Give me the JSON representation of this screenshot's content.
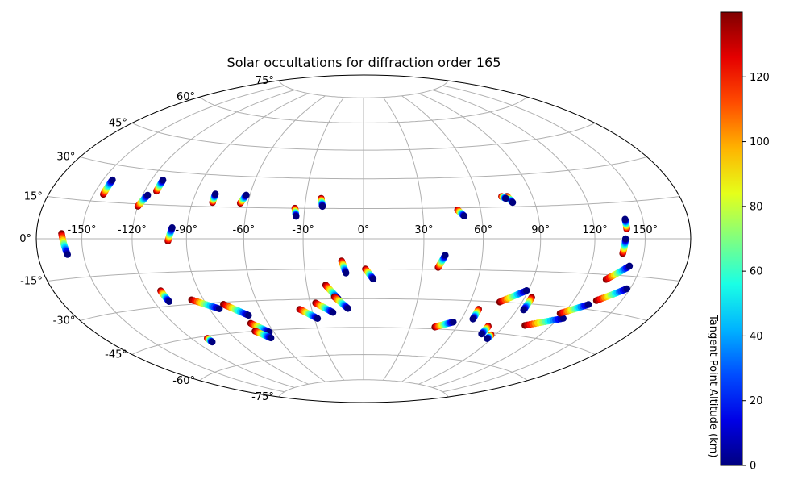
{
  "chart_data": {
    "type": "scatter",
    "projection": "aitoff-hammer",
    "title": "Solar occultations for diffraction order 165",
    "grid": true,
    "lon_ticks": [
      -150,
      -120,
      -90,
      -60,
      -30,
      0,
      30,
      60,
      90,
      120,
      150
    ],
    "lat_ticks": [
      -75,
      -60,
      -45,
      -30,
      -15,
      0,
      15,
      30,
      45,
      60,
      75
    ],
    "colorbar": {
      "label": "Tangent Point Altitude (km)",
      "ticks": [
        0,
        20,
        40,
        60,
        80,
        100,
        120
      ],
      "range": [
        0,
        140
      ],
      "colormap": "jet"
    },
    "tracks": [
      {
        "start": [
          -163,
          2
        ],
        "end": [
          -160,
          -6
        ]
      },
      {
        "start": [
          -144,
          18
        ],
        "end": [
          -144,
          24
        ]
      },
      {
        "start": [
          -120,
          14
        ],
        "end": [
          -117,
          19
        ]
      },
      {
        "start": [
          -113,
          21
        ],
        "end": [
          -113,
          26
        ]
      },
      {
        "start": [
          -100,
          -1
        ],
        "end": [
          -98,
          5
        ]
      },
      {
        "start": [
          -79,
          17
        ],
        "end": [
          -79,
          21
        ]
      },
      {
        "start": [
          -64,
          17
        ],
        "end": [
          -62,
          21
        ]
      },
      {
        "start": [
          -35,
          15
        ],
        "end": [
          -34,
          11
        ]
      },
      {
        "start": [
          -22,
          20
        ],
        "end": [
          -21,
          16
        ]
      },
      {
        "start": [
          -11,
          -11
        ],
        "end": [
          -9,
          -17
        ]
      },
      {
        "start": [
          1,
          -15
        ],
        "end": [
          5,
          -20
        ]
      },
      {
        "start": [
          38,
          -14
        ],
        "end": [
          41,
          -8
        ]
      },
      {
        "start": [
          48,
          14
        ],
        "end": [
          51,
          11
        ]
      },
      {
        "start": [
          76,
          20
        ],
        "end": [
          78,
          17
        ]
      },
      {
        "start": [
          73,
          20
        ],
        "end": [
          75,
          19
        ]
      },
      {
        "start": [
          139,
          4
        ],
        "end": [
          139,
          8
        ]
      },
      {
        "start": [
          137,
          -6
        ],
        "end": [
          138,
          0
        ]
      },
      {
        "start": [
          132,
          -17
        ],
        "end": [
          143,
          -11
        ]
      },
      {
        "start": [
          134,
          -26
        ],
        "end": [
          148,
          -20
        ]
      },
      {
        "start": [
          -112,
          -23
        ],
        "end": [
          -111,
          -28
        ]
      },
      {
        "start": [
          -97,
          -28
        ],
        "end": [
          -84,
          -33
        ]
      },
      {
        "start": [
          -80,
          -31
        ],
        "end": [
          -69,
          -37
        ]
      },
      {
        "start": [
          -37,
          -35
        ],
        "end": [
          -28,
          -40
        ]
      },
      {
        "start": [
          -27,
          -32
        ],
        "end": [
          -18,
          -37
        ]
      },
      {
        "start": [
          -20,
          -23
        ],
        "end": [
          -14,
          -30
        ]
      },
      {
        "start": [
          -16,
          -29
        ],
        "end": [
          -9,
          -35
        ]
      },
      {
        "start": [
          67,
          -34
        ],
        "end": [
          67,
          -39
        ]
      },
      {
        "start": [
          77,
          -30
        ],
        "end": [
          89,
          -24
        ]
      },
      {
        "start": [
          94,
          -27
        ],
        "end": [
          94,
          -33
        ]
      },
      {
        "start": [
          103,
          -40
        ],
        "end": [
          123,
          -35
        ]
      },
      {
        "start": [
          118,
          -33
        ],
        "end": [
          131,
          -28
        ]
      },
      {
        "start": [
          -71,
          -41
        ],
        "end": [
          -63,
          -46
        ]
      },
      {
        "start": [
          -72,
          -45
        ],
        "end": [
          -65,
          -49
        ]
      },
      {
        "start": [
          46,
          -44
        ],
        "end": [
          56,
          -41
        ]
      },
      {
        "start": [
          80,
          -42
        ],
        "end": [
          80,
          -46
        ]
      },
      {
        "start": [
          87,
          -46
        ],
        "end": [
          87,
          -48
        ]
      },
      {
        "start": [
          -109,
          -46
        ],
        "end": [
          -109,
          -48
        ]
      }
    ]
  }
}
